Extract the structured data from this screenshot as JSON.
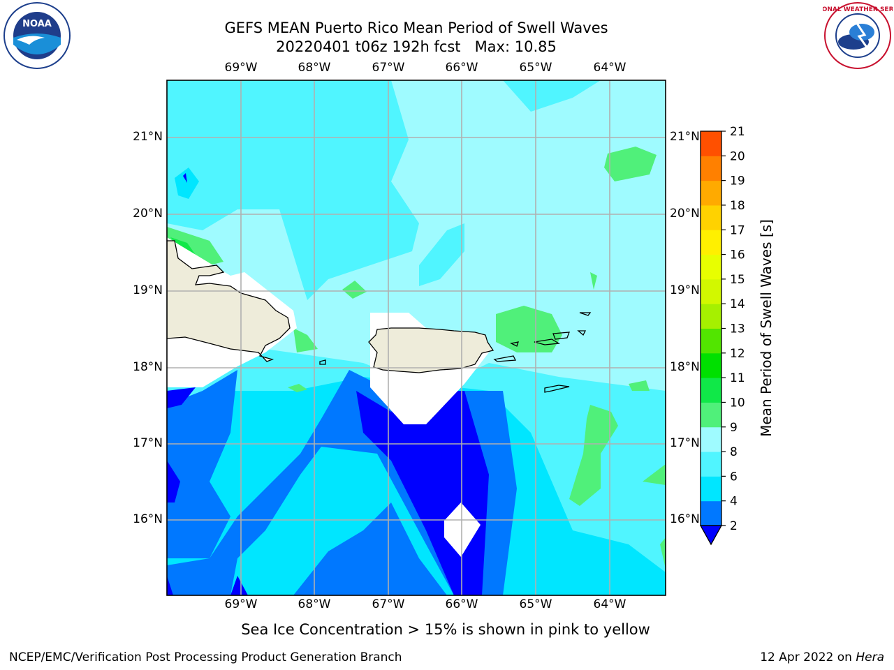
{
  "title": {
    "line1": "GEFS MEAN Puerto Rico Mean Period of Swell Waves",
    "line2": "20220401 t06z 192h fcst   Max: 10.85"
  },
  "axes": {
    "lon_labels": [
      "69°W",
      "68°W",
      "67°W",
      "66°W",
      "65°W",
      "64°W"
    ],
    "lat_labels": [
      "21°N",
      "20°N",
      "19°N",
      "18°N",
      "17°N",
      "16°N"
    ]
  },
  "colorbar": {
    "label": "Mean Period of Swell Waves [s]",
    "ticks": [
      "2",
      "4",
      "6",
      "8",
      "9",
      "10",
      "11",
      "12",
      "13",
      "14",
      "15",
      "16",
      "17",
      "18",
      "19",
      "20",
      "21"
    ],
    "levels": [
      2,
      4,
      6,
      8,
      9,
      10,
      11,
      12,
      13,
      14,
      15,
      16,
      17,
      18,
      19,
      20,
      21
    ],
    "colors": [
      "#0078ff",
      "#00e6ff",
      "#50f5ff",
      "#9ffbff",
      "#50f07a",
      "#10e848",
      "#00e000",
      "#52e500",
      "#a6f000",
      "#d2f800",
      "#e8ff00",
      "#fff000",
      "#ffd200",
      "#ffaa00",
      "#ff8000",
      "#ff5000",
      "#ff2000",
      "#ff0000"
    ],
    "under_color": "#0000ff"
  },
  "note": "Sea Ice Concentration > 15% is shown in pink to yellow",
  "footer": {
    "left": "NCEP/EMC/Verification Post Processing Product Generation Branch",
    "right_date": "12 Apr 2022 on ",
    "right_host": "Hera"
  },
  "logos": {
    "noaa": "NOAA",
    "nws": "NATIONAL WEATHER SERVICE"
  },
  "map_colors": {
    "land": "#eeecda",
    "missing": "#ffffff",
    "grid": "#b0b0b0"
  }
}
